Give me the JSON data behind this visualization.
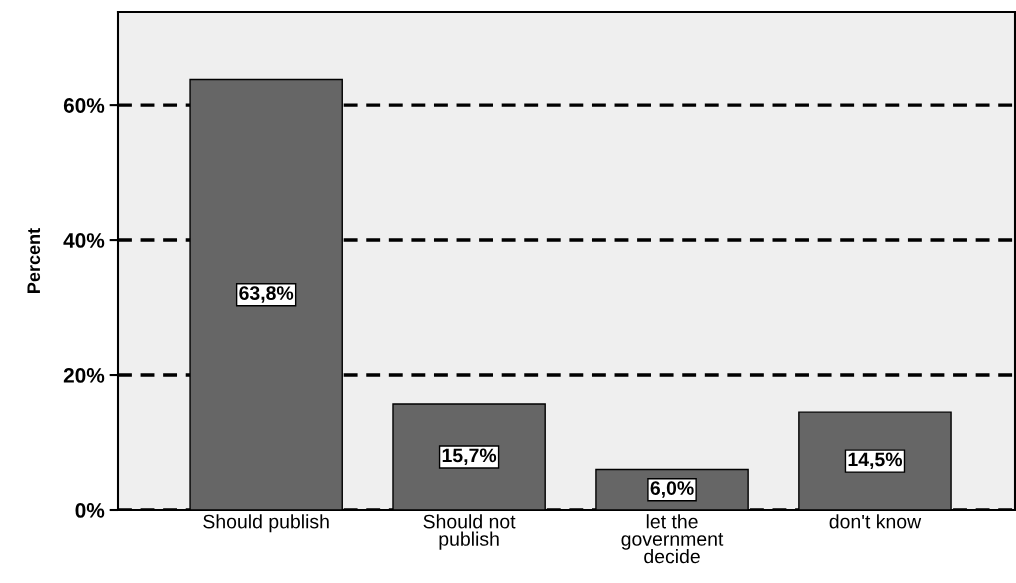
{
  "chart_data": {
    "type": "bar",
    "ylabel": "Percent",
    "categories": [
      "Should publish",
      "Should not\npublish",
      "let the\ngovernment\ndecide",
      "don't know"
    ],
    "values": [
      63.8,
      15.7,
      6.0,
      14.5
    ],
    "value_labels": [
      "63,8%",
      "15,7%",
      "6,0%",
      "14,5%"
    ],
    "color": "#666666",
    "ylim": [
      0,
      73.8
    ],
    "yticks": [
      {
        "value": 0,
        "label": "0%"
      },
      {
        "value": 20,
        "label": "20%"
      },
      {
        "value": 40,
        "label": "40%"
      },
      {
        "value": 60,
        "label": "60%"
      }
    ],
    "grid": "y",
    "line_style": "dashed"
  }
}
